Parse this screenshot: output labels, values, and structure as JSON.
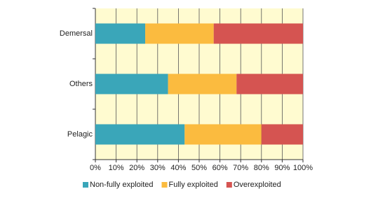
{
  "chart_data": {
    "type": "stacked-barh",
    "categories": [
      "Demersal",
      "Others",
      "Pelagic"
    ],
    "series": [
      {
        "name": "Non-fully exploited",
        "color": "#3aa6b9",
        "values": [
          24,
          35,
          43
        ]
      },
      {
        "name": "Fully exploited",
        "color": "#fbbb3f",
        "values": [
          33,
          33,
          37
        ]
      },
      {
        "name": "Overexploited",
        "color": "#d55451",
        "values": [
          43,
          32,
          20
        ]
      }
    ],
    "xlim": [
      0,
      100
    ],
    "xticks": [
      {
        "value": 0,
        "label": "0%"
      },
      {
        "value": 10,
        "label": "10%"
      },
      {
        "value": 20,
        "label": "20%"
      },
      {
        "value": 30,
        "label": "30%"
      },
      {
        "value": 40,
        "label": "40%"
      },
      {
        "value": 50,
        "label": "50%"
      },
      {
        "value": 60,
        "label": "60%"
      },
      {
        "value": 70,
        "label": "70%"
      },
      {
        "value": 80,
        "label": "80%"
      },
      {
        "value": 90,
        "label": "90%"
      },
      {
        "value": 100,
        "label": "100%"
      }
    ],
    "grid": true,
    "background": "#fffbd0",
    "legend": "bottom"
  }
}
